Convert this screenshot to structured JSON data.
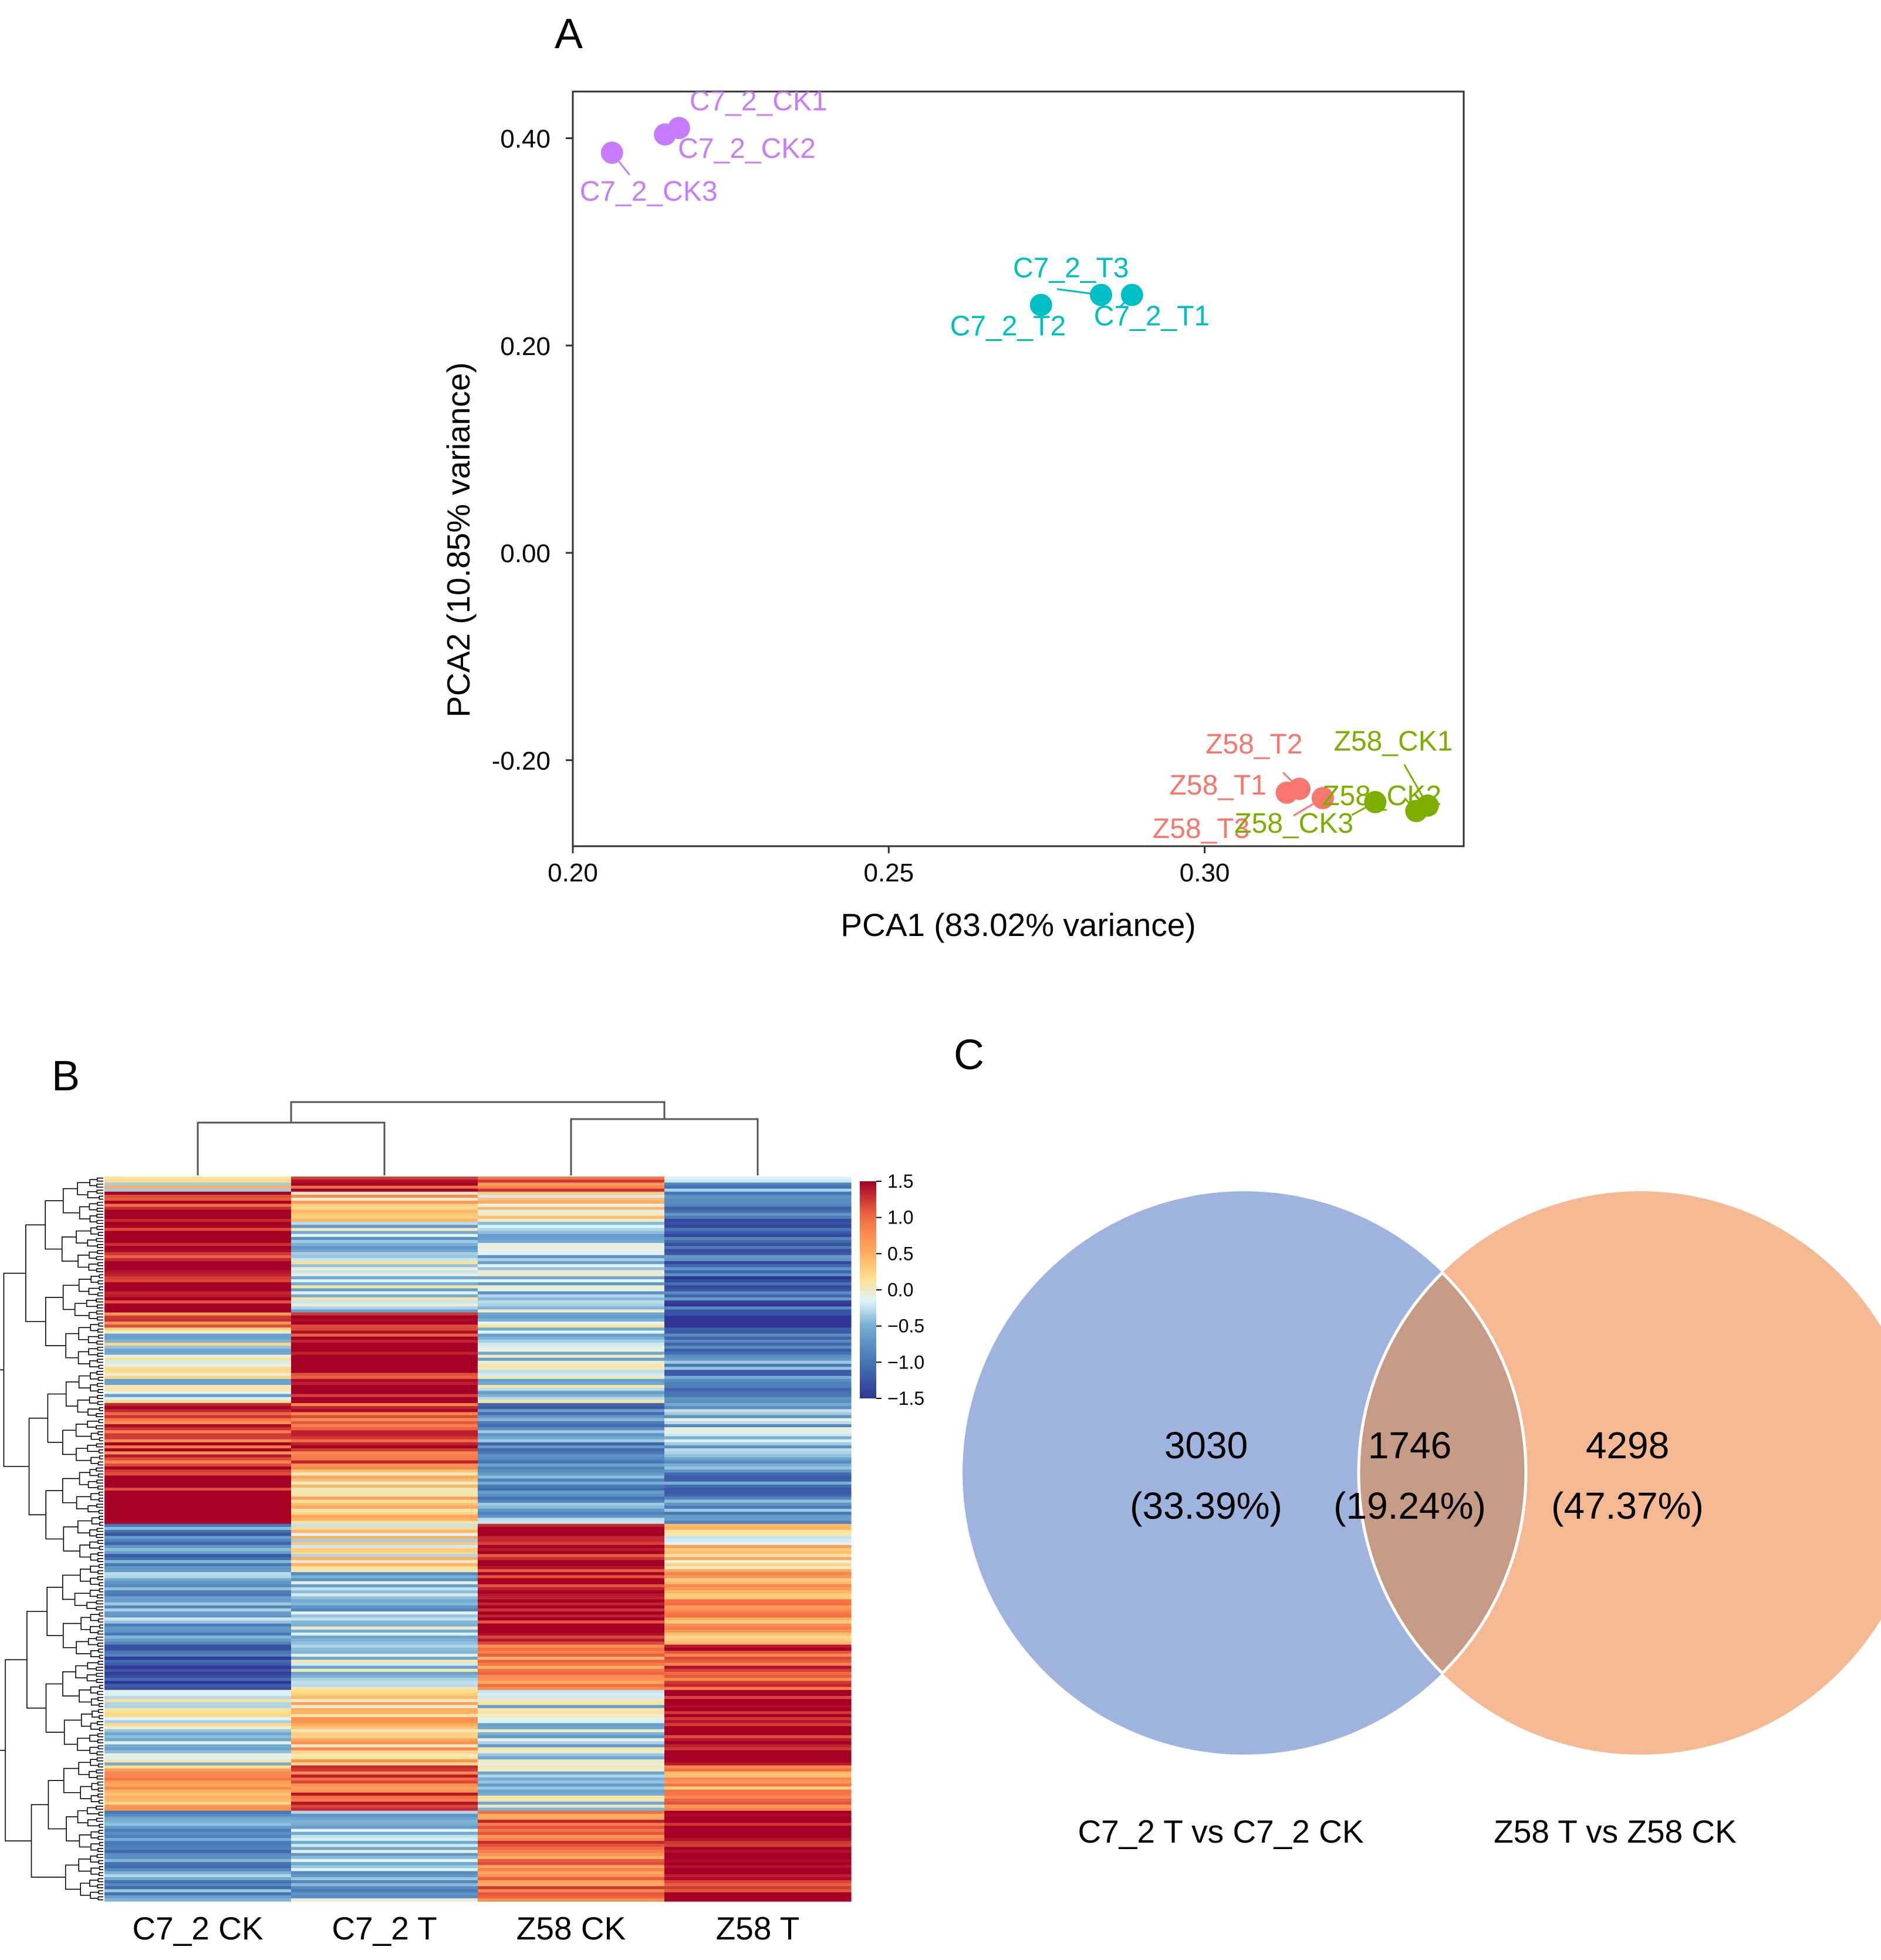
{
  "panel_labels": {
    "a": "A",
    "b": "B",
    "c": "C"
  },
  "chart_data": [
    {
      "type": "scatter",
      "panel": "A",
      "xlabel": "PCA1 (83.02% variance)",
      "ylabel": "PCA2 (10.85% variance)",
      "xlim": [
        0.2,
        0.341
      ],
      "ylim": [
        -0.283,
        0.445
      ],
      "x_ticks": [
        0.2,
        0.25,
        0.3
      ],
      "x_tick_labels": [
        "0.20",
        "0.25",
        "0.30"
      ],
      "y_ticks": [
        0.4,
        0.2,
        0.0,
        -0.2
      ],
      "y_tick_labels": [
        "0.40",
        "0.20",
        "0.00",
        "-0.20"
      ],
      "groups": [
        {
          "name": "C7_2 CK",
          "color": "#c77cff",
          "points": [
            {
              "label": "C7_2_CK1",
              "x": 0.2168,
              "y": 0.4098
            },
            {
              "label": "C7_2_CK2",
              "x": 0.2146,
              "y": 0.4036
            },
            {
              "label": "C7_2_CK3",
              "x": 0.2062,
              "y": 0.386
            }
          ]
        },
        {
          "name": "C7_2 T",
          "color": "#00bfc4",
          "points": [
            {
              "label": "C7_2_T1",
              "x": 0.2885,
              "y": 0.2488
            },
            {
              "label": "C7_2_T2",
              "x": 0.2741,
              "y": 0.2391
            },
            {
              "label": "C7_2_T3",
              "x": 0.2836,
              "y": 0.2488
            }
          ]
        },
        {
          "name": "Z58 T",
          "color": "#f8766d",
          "points": [
            {
              "label": "Z58_T1",
              "x": 0.313,
              "y": -0.2314
            },
            {
              "label": "Z58_T2",
              "x": 0.315,
              "y": -0.2276
            },
            {
              "label": "Z58_T3",
              "x": 0.3187,
              "y": -0.2366
            }
          ]
        },
        {
          "name": "Z58 CK",
          "color": "#7cae00",
          "points": [
            {
              "label": "Z58_CK1",
              "x": 0.3353,
              "y": -0.2438
            },
            {
              "label": "Z58_CK2",
              "x": 0.3335,
              "y": -0.249
            },
            {
              "label": "Z58_CK3",
              "x": 0.327,
              "y": -0.2405
            }
          ]
        }
      ]
    },
    {
      "type": "heatmap",
      "panel": "B",
      "columns": [
        "C7_2 CK",
        "C7_2 T",
        "Z58 CK",
        "Z58 T"
      ],
      "colorbar": {
        "min": -1.5,
        "max": 1.5,
        "ticks": [
          "1.5",
          "1.0",
          "0.5",
          "0.0",
          "−0.5",
          "−1.0",
          "−1.5"
        ]
      },
      "column_dendrogram": "((C7_2 CK, C7_2 T), (Z58 CK, Z58 T))",
      "row_blocks": [
        [
          0.04,
          1.4,
          0.9,
          -0.6,
          1,
          0
        ],
        [
          1.4,
          0.4,
          0.2,
          -1.0,
          2,
          0
        ],
        [
          1.5,
          -0.3,
          -0.4,
          -1.1,
          6,
          0
        ],
        [
          1.0,
          1.5,
          -0.2,
          -1.5,
          1,
          0
        ],
        [
          -0.2,
          1.5,
          -0.3,
          -0.8,
          5,
          0
        ],
        [
          1.1,
          1.2,
          -0.8,
          -0.5,
          4,
          0
        ],
        [
          1.5,
          0.4,
          -0.6,
          -0.8,
          4,
          0
        ],
        [
          -0.8,
          0.1,
          1.5,
          0.2,
          3,
          0
        ],
        [
          -0.5,
          -0.4,
          1.5,
          0.6,
          5,
          0
        ],
        [
          -1.2,
          -0.2,
          0.8,
          1.2,
          3,
          0
        ],
        [
          -0.2,
          0.4,
          -0.3,
          1.5,
          5,
          0
        ],
        [
          0.6,
          1.0,
          -0.2,
          0.7,
          3,
          0
        ],
        [
          -0.7,
          -0.5,
          0.9,
          1.5,
          6,
          0
        ]
      ]
    },
    {
      "type": "venn",
      "panel": "C",
      "sets": [
        {
          "name": "C7_2 T vs C7_2 CK",
          "color": "#8ea6d9"
        },
        {
          "name": "Z58 T vs Z58 CK",
          "color": "#f2ae84"
        }
      ],
      "regions": [
        {
          "id": "left",
          "value": "3030",
          "percent": "(33.39%)"
        },
        {
          "id": "overlap",
          "value": "1746",
          "percent": "(19.24%)"
        },
        {
          "id": "right",
          "value": "4298",
          "percent": "(47.37%)"
        }
      ]
    }
  ]
}
